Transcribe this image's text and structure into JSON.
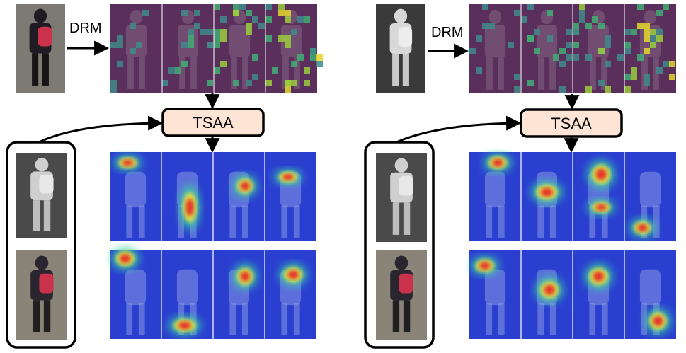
{
  "panels": [
    {
      "id": "left",
      "drm_label": "DRM",
      "tsaa_label": "TSAA",
      "query": {
        "tone": "rgb",
        "colors": {
          "bg": "#7c7a72",
          "body": "#1e1c22",
          "accent": "#c9324a",
          "legs": "#151515"
        }
      },
      "drm_crops": 4,
      "gallery": [
        {
          "tone": "ir"
        },
        {
          "tone": "rgb"
        }
      ],
      "heatmaps": [
        [
          {
            "hot": [
              [
                0.35,
                0.12,
                0.3,
                0.1
              ]
            ]
          },
          {
            "hot": [
              [
                0.55,
                0.62,
                0.22,
                0.28
              ]
            ]
          },
          {
            "hot": [
              [
                0.62,
                0.38,
                0.26,
                0.14
              ]
            ]
          },
          {
            "hot": [
              [
                0.45,
                0.28,
                0.3,
                0.1
              ]
            ]
          }
        ],
        [
          {
            "hot": [
              [
                0.3,
                0.1,
                0.3,
                0.14
              ]
            ]
          },
          {
            "hot": [
              [
                0.45,
                0.85,
                0.35,
                0.12
              ]
            ]
          },
          {
            "hot": [
              [
                0.62,
                0.3,
                0.26,
                0.16
              ]
            ]
          },
          {
            "hot": [
              [
                0.55,
                0.28,
                0.3,
                0.14
              ]
            ]
          }
        ]
      ]
    },
    {
      "id": "right",
      "drm_label": "DRM",
      "tsaa_label": "TSAA",
      "query": {
        "tone": "ir",
        "colors": {
          "bg": "#3a3a3a",
          "body": "#d8d8d8",
          "accent": "#ededed",
          "legs": "#c8c8c8"
        }
      },
      "drm_crops": 4,
      "gallery": [
        {
          "tone": "ir"
        },
        {
          "tone": "rgb"
        }
      ],
      "heatmaps": [
        [
          {
            "hot": [
              [
                0.55,
                0.12,
                0.3,
                0.12
              ]
            ]
          },
          {
            "hot": [
              [
                0.5,
                0.45,
                0.34,
                0.14
              ]
            ]
          },
          {
            "hot": [
              [
                0.55,
                0.25,
                0.3,
                0.18
              ],
              [
                0.55,
                0.62,
                0.3,
                0.1
              ]
            ]
          },
          {
            "hot": [
              [
                0.35,
                0.85,
                0.28,
                0.12
              ]
            ]
          }
        ],
        [
          {
            "hot": [
              [
                0.3,
                0.18,
                0.3,
                0.12
              ]
            ]
          },
          {
            "hot": [
              [
                0.55,
                0.45,
                0.3,
                0.16
              ]
            ]
          },
          {
            "hot": [
              [
                0.5,
                0.3,
                0.3,
                0.16
              ]
            ]
          },
          {
            "hot": [
              [
                0.65,
                0.8,
                0.28,
                0.16
              ]
            ]
          }
        ]
      ]
    }
  ],
  "colors": {
    "tsaa_fill": "#fde4d4",
    "drm_bg": "#5a2f5c",
    "drm_patch": [
      "#3f8a8a",
      "#3fae72",
      "#9acd3c",
      "#e4d82c"
    ],
    "heat_bg": "#2a3fd0",
    "ink": "#000000"
  }
}
